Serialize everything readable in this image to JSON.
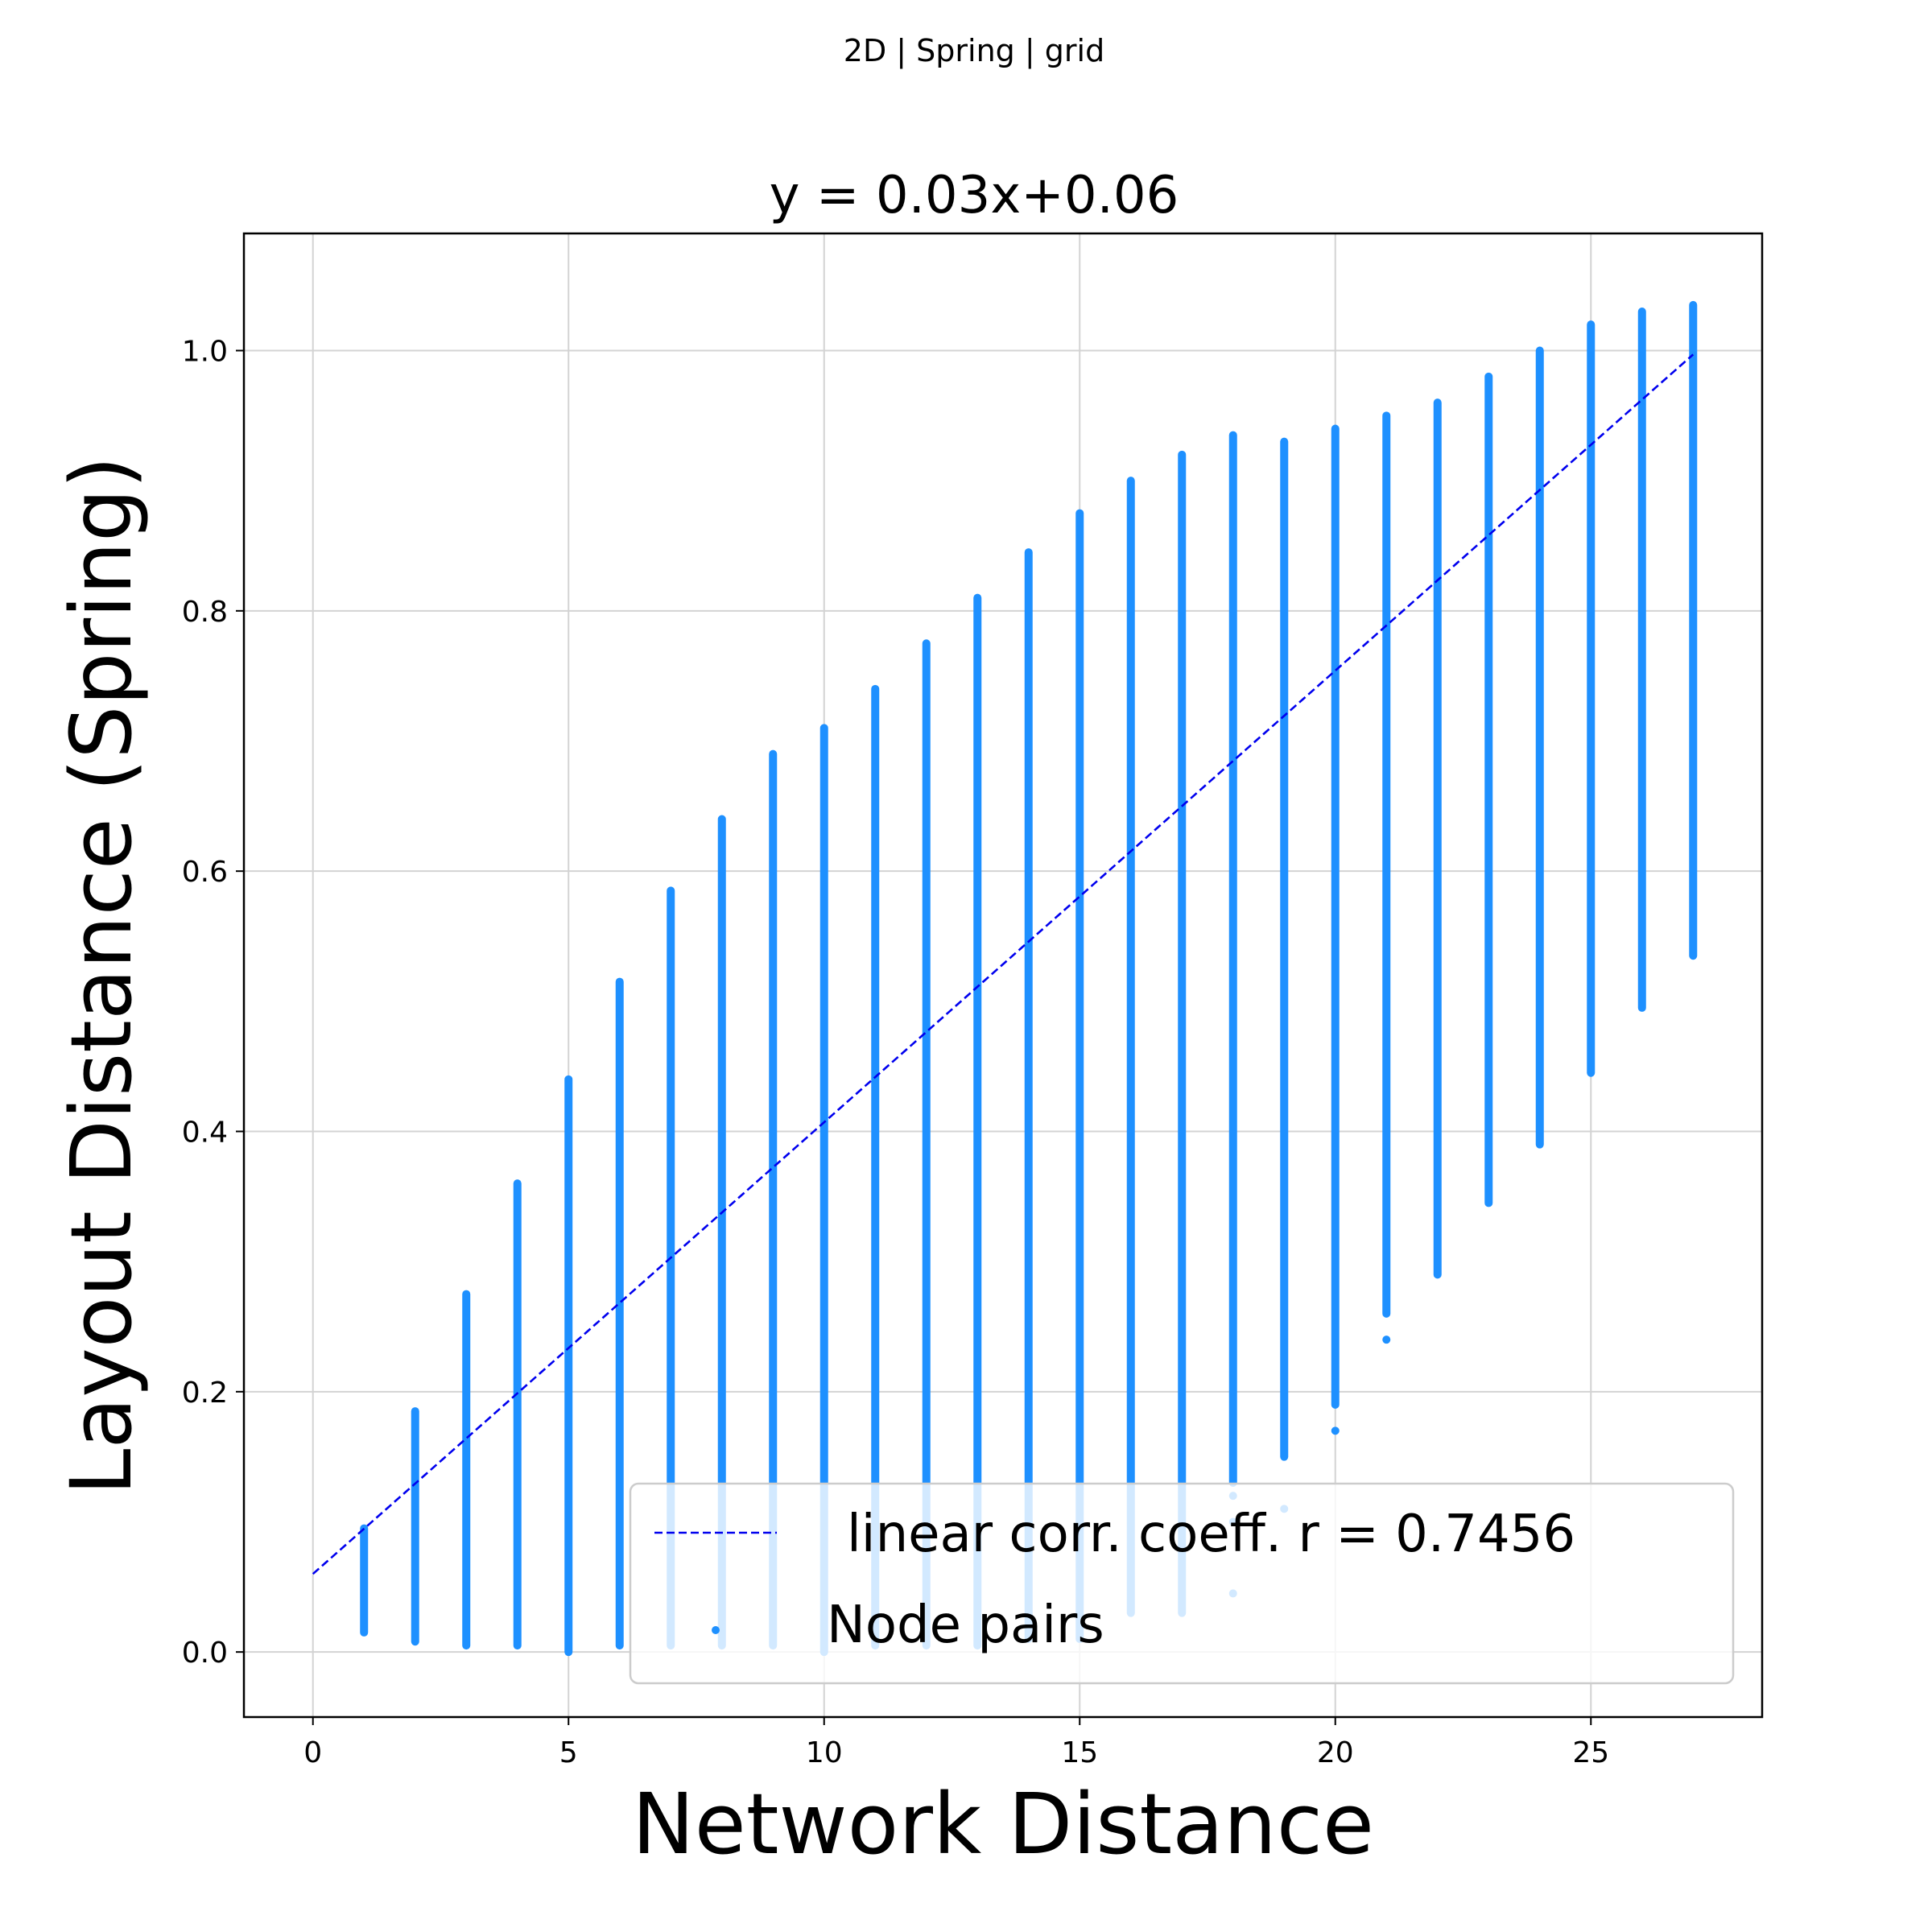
{
  "figure": {
    "suptitle": "2D | Spring | grid"
  },
  "chart_data": {
    "type": "scatter",
    "title": "y = 0.03x+0.06",
    "xlabel": "Network Distance",
    "ylabel": "Layout Distance (Spring)",
    "xlim": [
      -1.35,
      28.35
    ],
    "ylim": [
      -0.05,
      1.09
    ],
    "xticks": [
      0,
      5,
      10,
      15,
      20,
      25
    ],
    "yticks": [
      0.0,
      0.2,
      0.4,
      0.6,
      0.8,
      1.0
    ],
    "xtick_labels": [
      "0",
      "5",
      "10",
      "15",
      "20",
      "25"
    ],
    "ytick_labels": [
      "0.0",
      "0.2",
      "0.4",
      "0.6",
      "0.8",
      "1.0"
    ],
    "grid": true,
    "legend_position": "lower-right",
    "colors": {
      "points": "#1e90ff",
      "fit_line": "#0000ee",
      "grid": "#d3d3d3"
    },
    "series": [
      {
        "name": "Node pairs",
        "kind": "scatter",
        "columns": [
          {
            "x": 1,
            "ymin": 0.015,
            "ymax": 0.095,
            "outliers": []
          },
          {
            "x": 2,
            "ymin": 0.008,
            "ymax": 0.185,
            "outliers": []
          },
          {
            "x": 3,
            "ymin": 0.005,
            "ymax": 0.275,
            "outliers": []
          },
          {
            "x": 4,
            "ymin": 0.005,
            "ymax": 0.36,
            "outliers": []
          },
          {
            "x": 5,
            "ymin": 0.0,
            "ymax": 0.44,
            "outliers": []
          },
          {
            "x": 6,
            "ymin": 0.005,
            "ymax": 0.515,
            "outliers": []
          },
          {
            "x": 7,
            "ymin": 0.005,
            "ymax": 0.585,
            "outliers": []
          },
          {
            "x": 8,
            "ymin": 0.005,
            "ymax": 0.64,
            "outliers": []
          },
          {
            "x": 9,
            "ymin": 0.005,
            "ymax": 0.69,
            "outliers": []
          },
          {
            "x": 10,
            "ymin": 0.0,
            "ymax": 0.71,
            "outliers": []
          },
          {
            "x": 11,
            "ymin": 0.005,
            "ymax": 0.74,
            "outliers": []
          },
          {
            "x": 12,
            "ymin": 0.005,
            "ymax": 0.775,
            "outliers": []
          },
          {
            "x": 13,
            "ymin": 0.005,
            "ymax": 0.81,
            "outliers": []
          },
          {
            "x": 14,
            "ymin": 0.01,
            "ymax": 0.845,
            "outliers": []
          },
          {
            "x": 15,
            "ymin": 0.01,
            "ymax": 0.875,
            "outliers": []
          },
          {
            "x": 16,
            "ymin": 0.03,
            "ymax": 0.9,
            "outliers": []
          },
          {
            "x": 17,
            "ymin": 0.03,
            "ymax": 0.92,
            "outliers": []
          },
          {
            "x": 18,
            "ymin": 0.13,
            "ymax": 0.935,
            "outliers": [
              0.045,
              0.1,
              0.12
            ]
          },
          {
            "x": 19,
            "ymin": 0.15,
            "ymax": 0.93,
            "outliers": [
              0.11
            ]
          },
          {
            "x": 20,
            "ymin": 0.19,
            "ymax": 0.94,
            "outliers": [
              0.17
            ]
          },
          {
            "x": 21,
            "ymin": 0.26,
            "ymax": 0.95,
            "outliers": [
              0.24
            ]
          },
          {
            "x": 22,
            "ymin": 0.29,
            "ymax": 0.96,
            "outliers": []
          },
          {
            "x": 23,
            "ymin": 0.345,
            "ymax": 0.98,
            "outliers": []
          },
          {
            "x": 24,
            "ymin": 0.39,
            "ymax": 1.0,
            "outliers": []
          },
          {
            "x": 25,
            "ymin": 0.445,
            "ymax": 1.02,
            "outliers": []
          },
          {
            "x": 26,
            "ymin": 0.495,
            "ymax": 1.03,
            "outliers": []
          },
          {
            "x": 27,
            "ymin": 0.535,
            "ymax": 1.035,
            "outliers": []
          }
        ]
      },
      {
        "name": "linear corr. coeff. r = 0.7456",
        "kind": "line",
        "style": "dashed",
        "x": [
          0,
          27
        ],
        "y": [
          0.06,
          0.997
        ]
      }
    ]
  }
}
